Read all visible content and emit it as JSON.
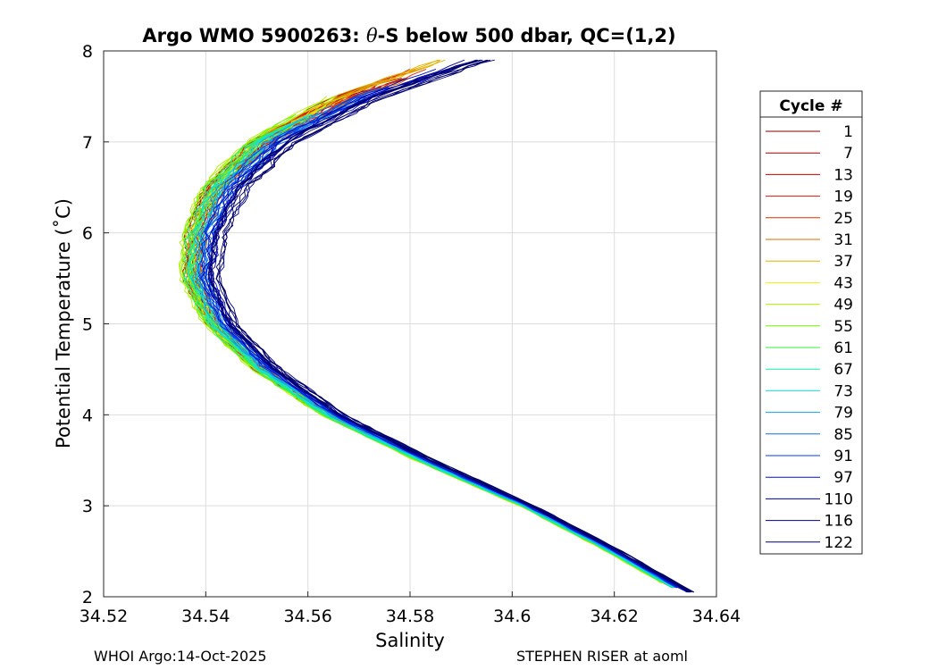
{
  "chart_data": {
    "type": "line",
    "title_parts": [
      "Argo WMO 5900263: ",
      "θ",
      "-S below 500 dbar,  QC=(1,2)"
    ],
    "xlabel": "Salinity",
    "ylabel": "Potential Temperature (˚C)",
    "xlim": [
      34.52,
      34.64
    ],
    "ylim": [
      2,
      8
    ],
    "xticks": [
      34.52,
      34.54,
      34.56,
      34.58,
      34.6,
      34.62,
      34.64
    ],
    "xtick_labels": [
      "34.52",
      "34.54",
      "34.56",
      "34.58",
      "34.6",
      "34.62",
      "34.64"
    ],
    "yticks": [
      2,
      3,
      4,
      5,
      6,
      7,
      8
    ],
    "ytick_labels": [
      "2",
      "3",
      "4",
      "5",
      "6",
      "7",
      "8"
    ],
    "grid": true,
    "legend": {
      "title": "Cycle #",
      "position": "right",
      "entries": [
        {
          "label": "1",
          "color": "#800000"
        },
        {
          "label": "7",
          "color": "#a00000"
        },
        {
          "label": "13",
          "color": "#c80000"
        },
        {
          "label": "19",
          "color": "#e01010"
        },
        {
          "label": "25",
          "color": "#e03000"
        },
        {
          "label": "31",
          "color": "#d07000"
        },
        {
          "label": "37",
          "color": "#e0b000"
        },
        {
          "label": "43",
          "color": "#f0f000"
        },
        {
          "label": "49",
          "color": "#b0f000"
        },
        {
          "label": "55",
          "color": "#70f000"
        },
        {
          "label": "61",
          "color": "#30f040"
        },
        {
          "label": "67",
          "color": "#10f0a0"
        },
        {
          "label": "73",
          "color": "#10e0e0"
        },
        {
          "label": "79",
          "color": "#10a0f0"
        },
        {
          "label": "85",
          "color": "#1070e0"
        },
        {
          "label": "91",
          "color": "#0040f0"
        },
        {
          "label": "97",
          "color": "#0010d0"
        },
        {
          "label": "110",
          "color": "#0000a0"
        },
        {
          "label": "116",
          "color": "#000080"
        },
        {
          "label": "122",
          "color": "#000060"
        }
      ]
    },
    "series": [
      {
        "name": "1",
        "color": "#800000",
        "s_offset": -0.002,
        "theta_max": 7.6,
        "theta_min": 2.1
      },
      {
        "name": "7",
        "color": "#a00000",
        "s_offset": -0.0018,
        "theta_max": 7.7,
        "theta_min": 2.1
      },
      {
        "name": "13",
        "color": "#c80000",
        "s_offset": -0.0022,
        "theta_max": 7.5,
        "theta_min": 2.1
      },
      {
        "name": "19",
        "color": "#e01010",
        "s_offset": -0.0016,
        "theta_max": 7.6,
        "theta_min": 2.1
      },
      {
        "name": "25",
        "color": "#e03000",
        "s_offset": -0.0014,
        "theta_max": 7.8,
        "theta_min": 2.1
      },
      {
        "name": "31",
        "color": "#d07000",
        "s_offset": -0.0012,
        "theta_max": 7.7,
        "theta_min": 2.1
      },
      {
        "name": "37",
        "color": "#e0b000",
        "s_offset": -0.0018,
        "theta_max": 7.9,
        "theta_min": 2.15
      },
      {
        "name": "43",
        "color": "#f0f000",
        "s_offset": -0.0028,
        "theta_max": 7.4,
        "theta_min": 2.15
      },
      {
        "name": "49",
        "color": "#b0f000",
        "s_offset": -0.003,
        "theta_max": 7.5,
        "theta_min": 2.15
      },
      {
        "name": "55",
        "color": "#70f000",
        "s_offset": -0.0026,
        "theta_max": 7.3,
        "theta_min": 2.15
      },
      {
        "name": "61",
        "color": "#30f040",
        "s_offset": -0.0024,
        "theta_max": 7.2,
        "theta_min": 2.15
      },
      {
        "name": "67",
        "color": "#10f0a0",
        "s_offset": -0.0018,
        "theta_max": 7.1,
        "theta_min": 2.1
      },
      {
        "name": "73",
        "color": "#10e0e0",
        "s_offset": -0.0012,
        "theta_max": 7.3,
        "theta_min": 2.1
      },
      {
        "name": "79",
        "color": "#10a0f0",
        "s_offset": -0.0006,
        "theta_max": 7.4,
        "theta_min": 2.1
      },
      {
        "name": "85",
        "color": "#1070e0",
        "s_offset": 0.0,
        "theta_max": 7.5,
        "theta_min": 2.1
      },
      {
        "name": "91",
        "color": "#0040f0",
        "s_offset": 0.0006,
        "theta_max": 7.6,
        "theta_min": 2.1
      },
      {
        "name": "97",
        "color": "#0010d0",
        "s_offset": 0.0012,
        "theta_max": 7.8,
        "theta_min": 2.05
      },
      {
        "name": "110",
        "color": "#0000a0",
        "s_offset": 0.002,
        "theta_max": 7.9,
        "theta_min": 2.05
      },
      {
        "name": "116",
        "color": "#000080",
        "s_offset": 0.0026,
        "theta_max": 7.9,
        "theta_min": 2.05
      },
      {
        "name": "122",
        "color": "#000060",
        "s_offset": 0.0032,
        "theta_max": 7.9,
        "theta_min": 2.05
      }
    ],
    "reference_profile": {
      "theta": [
        2.05,
        2.5,
        3.0,
        3.5,
        4.0,
        4.5,
        5.0,
        5.5,
        6.0,
        6.5,
        7.0,
        7.5,
        7.9
      ],
      "salinity": [
        34.634,
        34.62,
        34.603,
        34.583,
        34.565,
        34.552,
        34.543,
        34.539,
        34.54,
        34.544,
        34.553,
        34.57,
        34.59
      ]
    }
  },
  "footer": {
    "left": "WHOI Argo:14-Oct-2025",
    "right": "STEPHEN RISER at aoml"
  }
}
